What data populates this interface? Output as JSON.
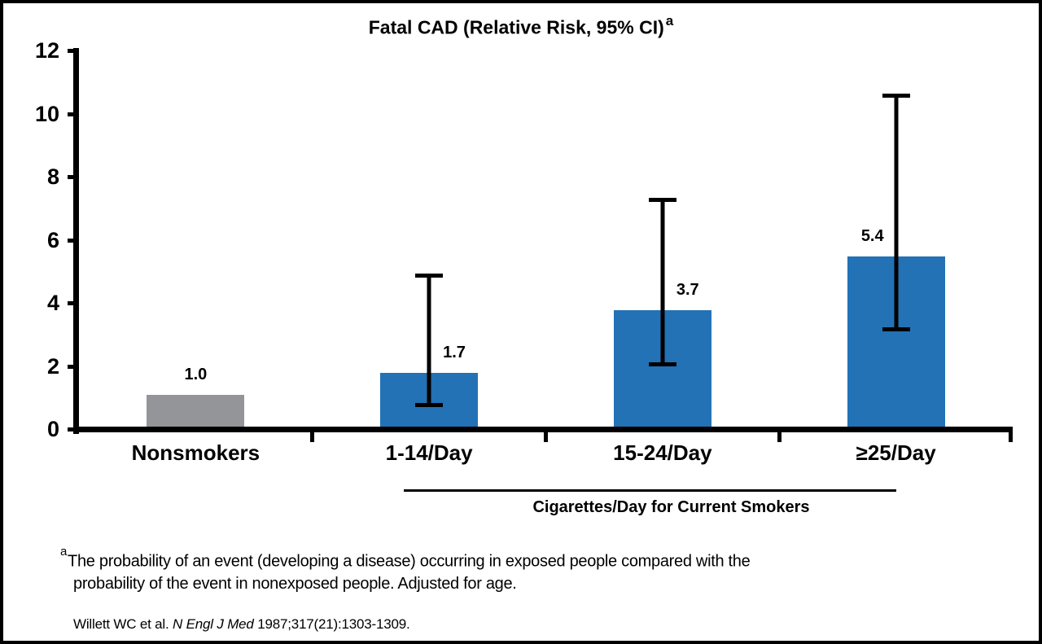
{
  "chart_data": {
    "type": "bar",
    "title": "Fatal CAD (Relative Risk, 95% CI)",
    "title_superscript": "a",
    "categories": [
      "Nonsmokers",
      "1-14/Day",
      "15-24/Day",
      "≥25/Day"
    ],
    "values": [
      1.0,
      1.7,
      3.7,
      5.4
    ],
    "value_labels": [
      "1.0",
      "1.7",
      "3.7",
      "5.4"
    ],
    "error_bars": [
      null,
      {
        "low": 0.7,
        "high": 4.8
      },
      {
        "low": 2.0,
        "high": 7.2
      },
      {
        "low": 3.1,
        "high": 10.5
      }
    ],
    "bar_colors": [
      "#939598",
      "#2272B5",
      "#2272B5",
      "#2272B5"
    ],
    "label_side": [
      "center",
      "right",
      "right",
      "left"
    ],
    "xlabel": "",
    "ylabel": "",
    "ylim": [
      0,
      12
    ],
    "yticks": [
      0,
      2,
      4,
      6,
      8,
      10,
      12
    ],
    "grid": false,
    "legend": null,
    "group_label": {
      "text": "Cigarettes/Day for Current Smokers",
      "applies_to": [
        "1-14/Day",
        "15-24/Day",
        "≥25/Day"
      ]
    }
  },
  "footnote": {
    "marker": "a",
    "line1": "The probability of an event (developing a disease) occurring in exposed people compared with the",
    "line2": "probability of the event in nonexposed people. Adjusted for age."
  },
  "citation": {
    "prefix": "Willett WC et al. ",
    "journal_italic": "N Engl J Med",
    "suffix": " 1987;317(21):1303-1309."
  }
}
